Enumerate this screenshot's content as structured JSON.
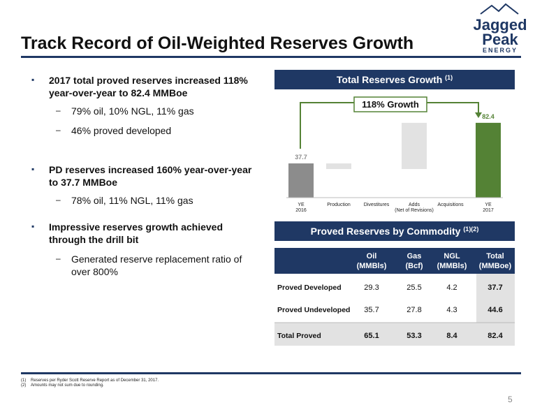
{
  "logo": {
    "line1": "Jagged",
    "line2": "Peak",
    "line3": "ENERGY"
  },
  "title": "Track Record of Oil-Weighted Reserves Growth",
  "bullets": [
    {
      "level": 1,
      "text": "2017 total proved reserves increased 118% year-over-year to 82.4 MMBoe"
    },
    {
      "level": 2,
      "text": "79% oil, 10% NGL, 11% gas"
    },
    {
      "level": 2,
      "text": "46% proved developed"
    },
    {
      "level": 1,
      "text": "PD reserves increased 160% year-over-year to 37.7 MMBoe"
    },
    {
      "level": 2,
      "text": "78% oil, 11% NGL, 11% gas"
    },
    {
      "level": 1,
      "text": "Impressive reserves growth achieved through the drill bit"
    },
    {
      "level": 2,
      "text": "Generated reserve replacement ratio of over 800%"
    }
  ],
  "chart_data": {
    "type": "waterfall",
    "title": "Total Reserves Growth",
    "title_note": "(1)",
    "annotation": "118% Growth",
    "categories": [
      [
        "YE",
        "2016"
      ],
      [
        "Production"
      ],
      [
        "Divestitures"
      ],
      [
        "Adds",
        "(Net of Revisions)"
      ],
      [
        "Acquisitions"
      ],
      [
        "YE",
        "2017"
      ]
    ],
    "values": [
      37.7,
      -6.2,
      0,
      50.9,
      0,
      82.4
    ],
    "colors": [
      "#8c8c8c",
      "#e2e2e2",
      "#e2e2e2",
      "#e2e2e2",
      "#e2e2e2",
      "#548235"
    ]
  },
  "table": {
    "title": "Proved Reserves by Commodity",
    "title_note": "(1)(2)",
    "columns": [
      [
        "Oil",
        "(MMBls)"
      ],
      [
        "Gas",
        "(Bcf)"
      ],
      [
        "NGL",
        "(MMBls)"
      ],
      [
        "Total",
        "(MMBoe)"
      ]
    ],
    "rows": [
      [
        "Proved Developed",
        "29.3",
        "25.5",
        "4.2",
        "37.7"
      ],
      [
        "Proved Undeveloped",
        "35.7",
        "27.8",
        "4.3",
        "44.6"
      ],
      [
        "Total Proved",
        "65.1",
        "53.3",
        "8.4",
        "82.4"
      ]
    ]
  },
  "footnotes": [
    [
      "(1)",
      "Reserves per Ryder Scott Reserve Report as of December 31, 2017."
    ],
    [
      "(2)",
      "Amounts may not sum due to rounding."
    ]
  ],
  "page_number": "5"
}
